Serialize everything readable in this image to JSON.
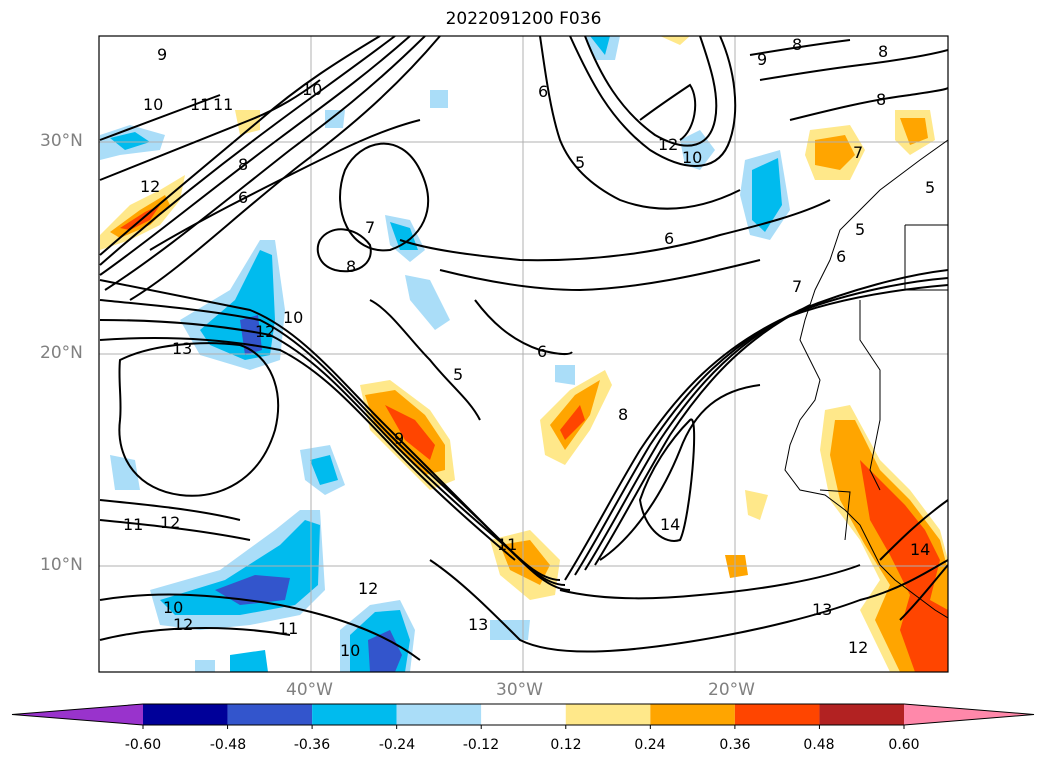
{
  "title": "2022091200 F036",
  "lat_labels": [
    "30°N",
    "20°N",
    "10°N"
  ],
  "lon_labels": [
    "40°W",
    "30°W",
    "20°W"
  ],
  "contour_labels": [
    "9",
    "10",
    "11",
    "11",
    "10",
    "12",
    "8",
    "6",
    "7",
    "8",
    "6",
    "5",
    "12",
    "10",
    "9",
    "8",
    "8",
    "8",
    "7",
    "5",
    "5",
    "6",
    "6",
    "7",
    "13",
    "12",
    "10",
    "5",
    "6",
    "9",
    "8",
    "14",
    "11",
    "12",
    "12",
    "10",
    "11",
    "10",
    "13",
    "12",
    "11",
    "14",
    "13",
    "12"
  ],
  "colorbar": {
    "ticks": [
      "-0.60",
      "-0.48",
      "-0.36",
      "-0.24",
      "-0.12",
      "0.12",
      "0.24",
      "0.36",
      "0.48",
      "0.60"
    ],
    "colors": [
      "#9933cc",
      "#000099",
      "#3355cc",
      "#00bbee",
      "#aaddf8",
      "#ffffff",
      "#ffe88a",
      "#ffa500",
      "#ff4500",
      "#b22222",
      "#ff88aa"
    ]
  }
}
